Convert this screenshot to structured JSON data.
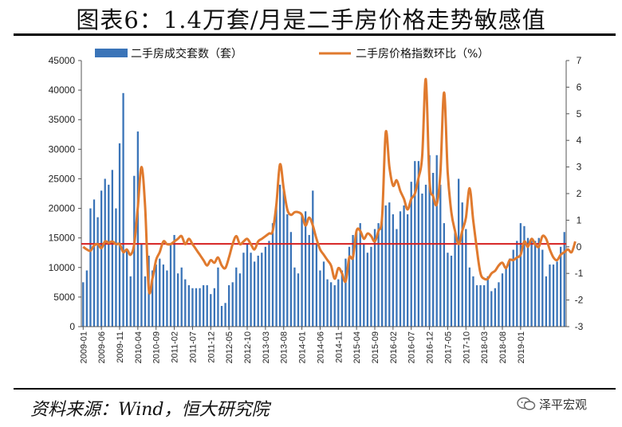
{
  "title": "图表6：1.4万套/月是二手房价格走势敏感值",
  "source": "资料来源：Wind，恒大研究院",
  "brand": "泽平宏观",
  "chart_data": {
    "type": "bar+line",
    "title": "图表6：1.4万套/月是二手房价格走势敏感值",
    "colors": {
      "bars": "#3a74b8",
      "line": "#e07a2e",
      "reference": "#d62020"
    },
    "left_axis": {
      "min": 0,
      "max": 45000,
      "ticks": [
        "0",
        "5000",
        "10000",
        "15000",
        "20000",
        "25000",
        "30000",
        "35000",
        "40000",
        "45000"
      ]
    },
    "right_axis": {
      "min": -3,
      "max": 7,
      "ticks": [
        "-3",
        "-2",
        "-1",
        "0",
        "1",
        "2",
        "3",
        "4",
        "5",
        "6",
        "7"
      ]
    },
    "x_labels": [
      "2009-01",
      "2009-06",
      "2009-11",
      "2010-04",
      "2010-09",
      "2011-02",
      "2011-07",
      "2011-12",
      "2012-05",
      "2012-10",
      "2013-03",
      "2013-08",
      "2014-01",
      "2014-06",
      "2014-11",
      "2015-04",
      "2015-09",
      "2016-02",
      "2016-07",
      "2016-12",
      "2017-05",
      "2017-10",
      "2018-03",
      "2018-08",
      "2019-01"
    ],
    "reference_line": {
      "axis": "left",
      "value": 14000
    },
    "series": [
      {
        "name": "二手房成交套数（套）",
        "type": "bar",
        "axis": "left",
        "values": [
          7500,
          9500,
          20000,
          21500,
          18500,
          23000,
          25000,
          24000,
          26500,
          20000,
          31000,
          39500,
          13000,
          8500,
          25500,
          33000,
          14000,
          8500,
          12000,
          9500,
          10500,
          11500,
          10500,
          9500,
          14000,
          15500,
          9000,
          10000,
          8000,
          7000,
          6500,
          6500,
          6500,
          7000,
          7000,
          5500,
          6500,
          10000,
          3500,
          4000,
          7000,
          7500,
          10000,
          9000,
          12500,
          14000,
          12500,
          11000,
          12000,
          12500,
          13500,
          14500,
          17500,
          20500,
          24000,
          23000,
          19000,
          16000,
          10000,
          9000,
          19000,
          19500,
          15500,
          23000,
          14000,
          9500,
          11000,
          8000,
          7500,
          7000,
          8000,
          9500,
          11500,
          13500,
          15500,
          16000,
          17500,
          14000,
          12500,
          13500,
          16500,
          17500,
          18500,
          20500,
          21000,
          19000,
          16500,
          19500,
          20500,
          19000,
          24500,
          28000,
          28000,
          22500,
          24000,
          29000,
          26000,
          29000,
          24000,
          17500,
          12500,
          12000,
          16000,
          25000,
          21000,
          16500,
          10000,
          8500,
          7000,
          7000,
          7000,
          8500,
          6000,
          6500,
          7500,
          9000,
          10000,
          11500,
          13000,
          14500,
          17500,
          17000,
          15000,
          14500,
          14500,
          15000,
          13000,
          8500,
          10500,
          10500,
          11000,
          13500,
          16000
        ]
      },
      {
        "name": "二手房价格指数环比（%）",
        "type": "line",
        "axis": "right",
        "values": [
          0,
          -0.1,
          -0.15,
          0.05,
          0.1,
          -0.05,
          0.2,
          0.15,
          0.2,
          0.1,
          0.1,
          -0.2,
          -0.1,
          -0.3,
          0.1,
          1.5,
          3.0,
          1.5,
          -1.6,
          -1.2,
          -0.5,
          -0.2,
          0.2,
          0.1,
          0.1,
          0.2,
          0.3,
          0.4,
          0.1,
          0.3,
          0.1,
          -0.1,
          -0.3,
          -0.5,
          -0.7,
          -0.5,
          -0.6,
          -0.4,
          -0.7,
          -0.8,
          -0.4,
          0.1,
          0.4,
          0.1,
          0.2,
          0.3,
          0.1,
          -0.1,
          0.2,
          0.3,
          0.4,
          0.5,
          0.6,
          1.6,
          3.1,
          2.2,
          1.4,
          1.2,
          1.3,
          1.3,
          1.2,
          0.8,
          1.1,
          0.8,
          0.3,
          -0.1,
          -0.3,
          -0.5,
          -0.7,
          -1.2,
          -0.8,
          -1.0,
          -1.3,
          -0.4,
          -0.4,
          0.6,
          0.6,
          0.3,
          0.5,
          0.4,
          0.2,
          0.6,
          1.1,
          4.3,
          3.0,
          2.3,
          2.5,
          2.1,
          1.8,
          1.4,
          1.8,
          2.0,
          2.6,
          3.4,
          6.3,
          2.5,
          1.9,
          1.6,
          2.8,
          5.8,
          2.8,
          1.3,
          0.6,
          0.1,
          0.6,
          1.1,
          2.2,
          1.0,
          -0.1,
          -1.0,
          -1.2,
          -1.2,
          -1.0,
          -0.9,
          -0.7,
          -0.6,
          -0.8,
          -0.5,
          -0.5,
          -0.4,
          -0.3,
          0.2,
          0.0,
          0.3,
          0.1,
          0.0,
          0.4,
          0.3,
          -0.1,
          -0.4,
          -0.5,
          -0.3,
          -0.2,
          -0.1,
          -0.2,
          0.2
        ]
      }
    ]
  }
}
